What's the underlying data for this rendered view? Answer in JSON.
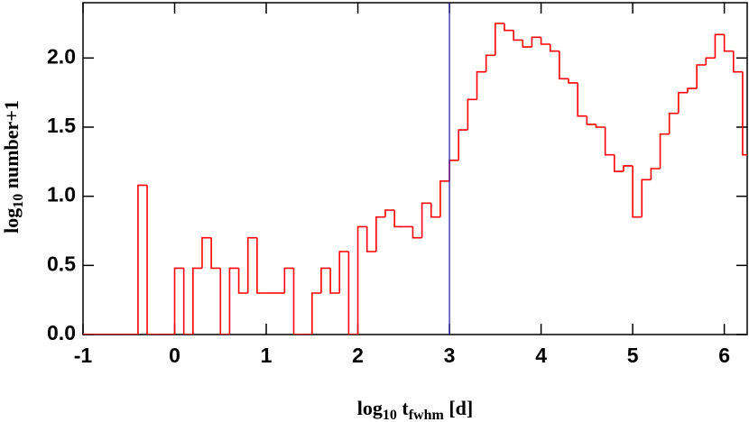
{
  "chart_data": {
    "type": "histogram",
    "xlabel": [
      "log",
      "10",
      " t",
      "fwhm",
      " [d]"
    ],
    "ylabel": [
      "log",
      "10",
      " number+1"
    ],
    "bins": [
      -1.0,
      -0.9,
      -0.8,
      -0.7,
      -0.6,
      -0.5,
      -0.4,
      -0.3,
      -0.2,
      -0.1,
      0.0,
      0.1,
      0.2,
      0.3,
      0.4,
      0.5,
      0.6,
      0.7,
      0.8,
      0.9,
      1.0,
      1.1,
      1.2,
      1.3,
      1.4,
      1.5,
      1.6,
      1.7,
      1.8,
      1.9,
      2.0,
      2.1,
      2.2,
      2.3,
      2.4,
      2.5,
      2.6,
      2.7,
      2.8,
      2.9,
      3.0,
      3.1,
      3.2,
      3.3,
      3.4,
      3.5,
      3.6,
      3.7,
      3.8,
      3.9,
      4.0,
      4.1,
      4.2,
      4.3,
      4.4,
      4.5,
      4.6,
      4.7,
      4.8,
      4.9,
      5.0,
      5.1,
      5.2,
      5.3,
      5.4,
      5.5,
      5.6,
      5.7,
      5.8,
      5.9,
      6.0,
      6.1,
      6.2,
      6.3
    ],
    "values": [
      0,
      0,
      0,
      0,
      0,
      0,
      1.08,
      0,
      0,
      0,
      0.48,
      0,
      0.48,
      0.7,
      0.48,
      0,
      0.48,
      0.3,
      0.7,
      0.3,
      0.3,
      0.3,
      0.48,
      0,
      0,
      0.3,
      0.48,
      0.3,
      0.6,
      0,
      0.78,
      0.6,
      0.85,
      0.9,
      0.78,
      0.78,
      0.7,
      0.95,
      0.85,
      1.11,
      1.26,
      1.48,
      1.7,
      1.9,
      2.02,
      2.25,
      2.2,
      2.13,
      2.08,
      2.15,
      2.1,
      2.05,
      1.85,
      1.82,
      1.58,
      1.52,
      1.5,
      1.3,
      1.18,
      1.22,
      0.85,
      1.12,
      1.2,
      1.45,
      1.6,
      1.75,
      1.78,
      1.95,
      2.0,
      2.17,
      2.05,
      1.9,
      1.3
    ],
    "color": "#ff0000",
    "vline": 3,
    "vline_color": "#1a1aa0",
    "xlim": [
      -1,
      6.25
    ],
    "xticks": [
      -1,
      0,
      1,
      2,
      3,
      4,
      5,
      6
    ],
    "ylim": [
      0,
      2.4
    ],
    "yticks": [
      {
        "value": 0,
        "label": "0.0"
      },
      0.5,
      {
        "value": 1,
        "label": "1.0"
      },
      1.5,
      {
        "value": 2,
        "label": "2.0"
      }
    ]
  }
}
